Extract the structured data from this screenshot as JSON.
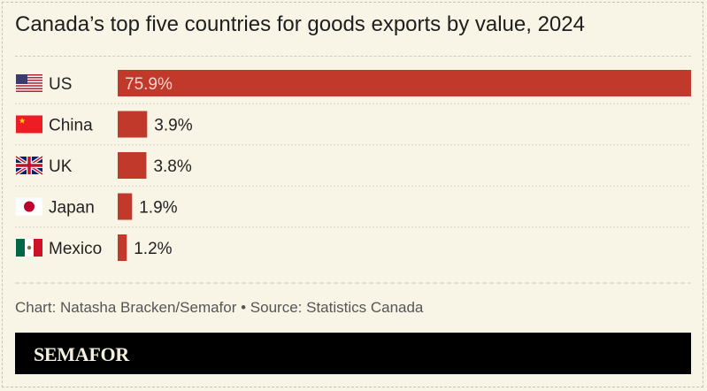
{
  "title": "Canada’s top five countries for goods exports by value, 2024",
  "footer": "Chart: Natasha Bracken/Semafor • Source: Statistics Canada",
  "brand": "SEMAFOR",
  "colors": {
    "bar": "#c0392b",
    "background": "#f8f5e6",
    "brand_bar": "#000000"
  },
  "chart_data": {
    "type": "bar",
    "orientation": "horizontal",
    "categories": [
      "US",
      "China",
      "UK",
      "Japan",
      "Mexico"
    ],
    "values": [
      75.9,
      3.9,
      3.8,
      1.9,
      1.2
    ],
    "labels": [
      "75.9%",
      "3.9%",
      "3.8%",
      "1.9%",
      "1.2%"
    ],
    "flags": [
      "us-flag-icon",
      "china-flag-icon",
      "uk-flag-icon",
      "japan-flag-icon",
      "mexico-flag-icon"
    ],
    "unit": "%",
    "xlim": [
      0,
      75.9
    ],
    "grid": false,
    "legend": "none"
  }
}
